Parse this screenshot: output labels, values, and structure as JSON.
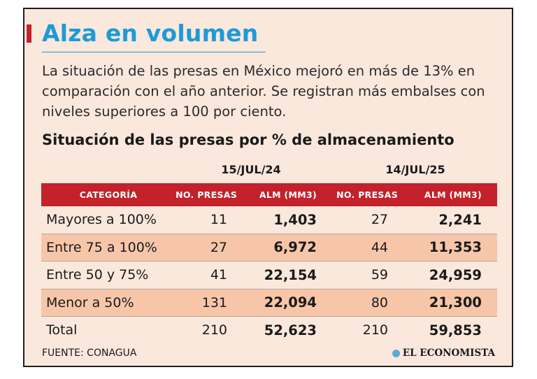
{
  "headline": "Alza en volumen",
  "intro": "La situación de las presas en México mejoró en más de 13% en comparación con el año anterior. Se registran más embalses con niveles superiores a 100 por ciento.",
  "chart_data": {
    "type": "table",
    "title": "Situación de las presas por % de almacenamiento",
    "periods": [
      "15/JUL/24",
      "14/JUL/25"
    ],
    "columns": [
      "CATEGORÍA",
      "NO. PRESAS",
      "ALM (MM3)",
      "NO. PRESAS",
      "ALM (MM3)"
    ],
    "rows": [
      {
        "category": "Mayores a 100%",
        "presas_2024": "11",
        "alm_2024": "1,403",
        "presas_2025": "27",
        "alm_2025": "2,241"
      },
      {
        "category": "Entre 75 a 100%",
        "presas_2024": "27",
        "alm_2024": "6,972",
        "presas_2025": "44",
        "alm_2025": "11,353"
      },
      {
        "category": "Entre 50 y 75%",
        "presas_2024": "41",
        "alm_2024": "22,154",
        "presas_2025": "59",
        "alm_2025": "24,959"
      },
      {
        "category": "Menor a 50%",
        "presas_2024": "131",
        "alm_2024": "22,094",
        "presas_2025": "80",
        "alm_2025": "21,300"
      },
      {
        "category": "Total",
        "presas_2024": "210",
        "alm_2024": "52,623",
        "presas_2025": "210",
        "alm_2025": "59,853"
      }
    ]
  },
  "footer": {
    "source": "FUENTE: CONAGUA",
    "brand": "EL ECONOMISTA"
  },
  "colors": {
    "accent_blue": "#1f9ad6",
    "header_red": "#c3222b",
    "card_bg": "#fbe8dd",
    "row_shade": "#f7c6a9"
  }
}
